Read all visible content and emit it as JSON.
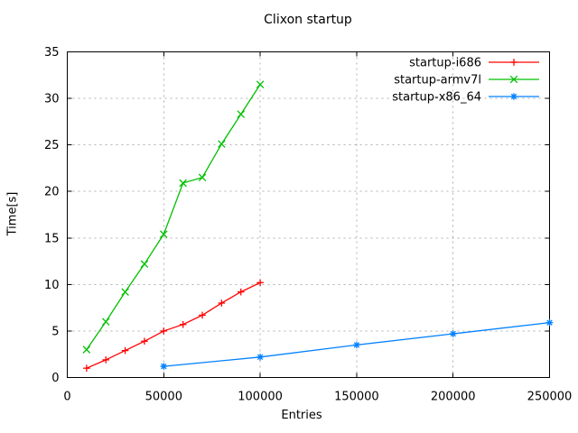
{
  "chart_data": {
    "type": "line",
    "title": "Clixon startup",
    "xlabel": "Entries",
    "ylabel": "Time[s]",
    "xlim": [
      0,
      250000
    ],
    "ylim": [
      0,
      35
    ],
    "xticks": [
      0,
      50000,
      100000,
      150000,
      200000,
      250000
    ],
    "yticks": [
      0,
      5,
      10,
      15,
      20,
      25,
      30,
      35
    ],
    "grid": true,
    "legend_position": "top-right-inside",
    "series": [
      {
        "name": "startup-i686",
        "color": "#ff0000",
        "marker": "plus",
        "x": [
          10000,
          20000,
          30000,
          40000,
          50000,
          60000,
          70000,
          80000,
          90000,
          100000
        ],
        "y": [
          1.0,
          1.9,
          2.9,
          3.9,
          5.0,
          5.7,
          6.7,
          8.0,
          9.2,
          10.2
        ]
      },
      {
        "name": "startup-armv7l",
        "color": "#00c000",
        "marker": "cross",
        "x": [
          10000,
          20000,
          30000,
          40000,
          50000,
          60000,
          70000,
          80000,
          90000,
          100000
        ],
        "y": [
          3.0,
          6.0,
          9.2,
          12.2,
          15.4,
          20.9,
          21.5,
          25.1,
          28.3,
          31.5
        ]
      },
      {
        "name": "startup-x86_64",
        "color": "#0080ff",
        "marker": "star",
        "x": [
          50000,
          100000,
          150000,
          200000,
          250000
        ],
        "y": [
          1.2,
          2.2,
          3.5,
          4.7,
          5.9
        ]
      }
    ],
    "colors": {
      "background": "#ffffff",
      "border": "#000000",
      "grid": "#b0b0b0",
      "text": "#000000"
    }
  }
}
